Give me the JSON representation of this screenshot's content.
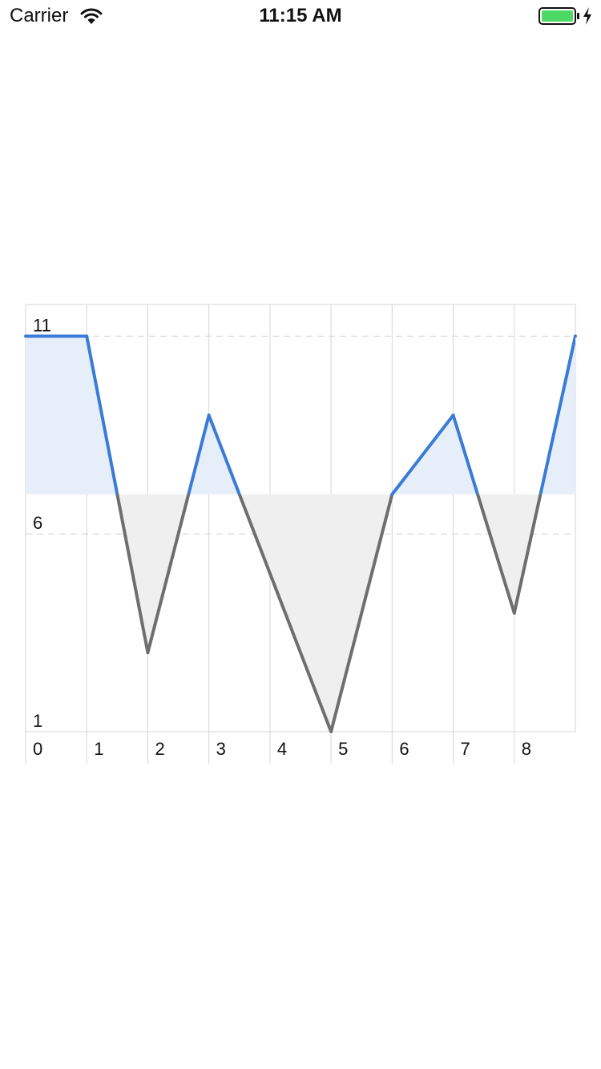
{
  "status_bar": {
    "carrier": "Carrier",
    "time": "11:15 AM",
    "battery_color": "#4cd964",
    "icons": [
      "wifi-icon",
      "battery-icon",
      "charging-bolt-icon"
    ]
  },
  "chart_data": {
    "type": "area",
    "title": "",
    "xlabel": "",
    "ylabel": "",
    "x": [
      0,
      1,
      2,
      3,
      4,
      5,
      6,
      7,
      8,
      9
    ],
    "y": [
      11,
      11,
      3,
      9,
      5,
      1,
      7,
      9,
      4,
      11
    ],
    "x_ticks": [
      "0",
      "1",
      "2",
      "3",
      "4",
      "5",
      "6",
      "7",
      "8"
    ],
    "y_ticks": [
      "1",
      "6",
      "11"
    ],
    "xlim": [
      0,
      9
    ],
    "ylim": [
      1,
      11.8
    ],
    "baseline": 7,
    "grid": "vertical lines at every x, dashed horizontal lines at y ticks",
    "legend": "none",
    "colors": {
      "above_line": "#3a7bd5",
      "above_fill": "#e6eefa",
      "below_line": "#6e6e6e",
      "below_fill": "#efefef",
      "grid": "#d6d6d6",
      "dashed_grid": "#d0d0d0"
    }
  }
}
